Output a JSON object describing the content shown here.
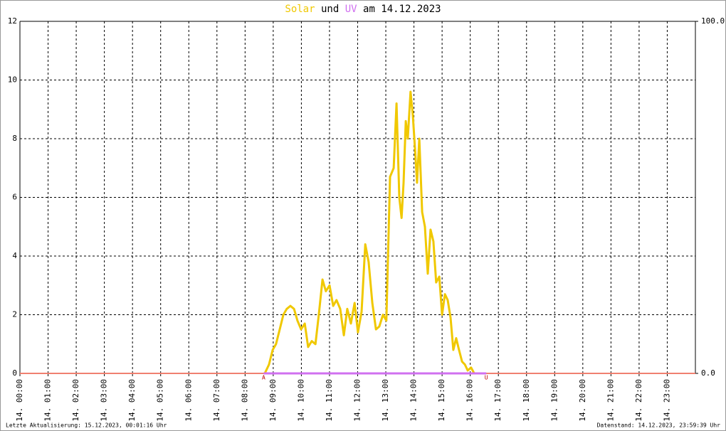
{
  "chart_data": {
    "type": "line",
    "title_connector": "und",
    "title_suffix": "am 14.12.2023",
    "footer_left": "Letzte Aktualisierung: 15.12.2023, 00:01:16 Uhr",
    "footer_right": "Datenstand: 14.12.2023, 23:59:39 Uhr",
    "xlim": [
      0,
      24
    ],
    "xticks": [
      {
        "value": 0,
        "label": "14. 00:00"
      },
      {
        "value": 1,
        "label": "14. 01:00"
      },
      {
        "value": 2,
        "label": "14. 02:00"
      },
      {
        "value": 3,
        "label": "14. 03:00"
      },
      {
        "value": 4,
        "label": "14. 04:00"
      },
      {
        "value": 5,
        "label": "14. 05:00"
      },
      {
        "value": 6,
        "label": "14. 06:00"
      },
      {
        "value": 7,
        "label": "14. 07:00"
      },
      {
        "value": 8,
        "label": "14. 08:00"
      },
      {
        "value": 9,
        "label": "14. 09:00"
      },
      {
        "value": 10,
        "label": "14. 10:00"
      },
      {
        "value": 11,
        "label": "14. 11:00"
      },
      {
        "value": 12,
        "label": "14. 12:00"
      },
      {
        "value": 13,
        "label": "14. 13:00"
      },
      {
        "value": 14,
        "label": "14. 14:00"
      },
      {
        "value": 15,
        "label": "14. 15:00"
      },
      {
        "value": 16,
        "label": "14. 16:00"
      },
      {
        "value": 17,
        "label": "14. 17:00"
      },
      {
        "value": 18,
        "label": "14. 18:00"
      },
      {
        "value": 19,
        "label": "14. 19:00"
      },
      {
        "value": 20,
        "label": "14. 20:00"
      },
      {
        "value": 21,
        "label": "14. 21:00"
      },
      {
        "value": 22,
        "label": "14. 22:00"
      },
      {
        "value": 23,
        "label": "14. 23:00"
      }
    ],
    "ylim": [
      0,
      12
    ],
    "yticks": [
      0,
      2,
      4,
      6,
      8,
      10,
      12
    ],
    "y2lim": [
      0,
      100
    ],
    "y2ticks": [
      {
        "value": 0,
        "label": "0.0"
      },
      {
        "value": 100,
        "label": "100.0"
      }
    ],
    "grid": true,
    "series": [
      {
        "name": "Solar",
        "color": "#f0c800",
        "x": [
          8.7,
          8.85,
          8.98,
          9.1,
          9.23,
          9.36,
          9.48,
          9.61,
          9.74,
          9.86,
          9.99,
          10.12,
          10.24,
          10.37,
          10.5,
          10.62,
          10.75,
          10.87,
          11.0,
          11.13,
          11.25,
          11.38,
          11.51,
          11.63,
          11.76,
          11.89,
          12.01,
          12.14,
          12.27,
          12.39,
          12.52,
          12.65,
          12.77,
          12.9,
          13.02,
          13.15,
          13.28,
          13.38,
          13.48,
          13.56,
          13.63,
          13.71,
          13.78,
          13.88,
          13.96,
          14.04,
          14.11,
          14.19,
          14.29,
          14.39,
          14.49,
          14.59,
          14.69,
          14.79,
          14.9,
          15.0,
          15.1,
          15.2,
          15.3,
          15.4,
          15.5,
          15.6,
          15.71,
          15.81,
          15.91,
          16.03,
          16.14
        ],
        "values": [
          0,
          0.3,
          0.8,
          1.0,
          1.5,
          2.0,
          2.2,
          2.3,
          2.2,
          1.8,
          1.5,
          1.7,
          0.9,
          1.1,
          1.0,
          2.0,
          3.2,
          2.8,
          3.0,
          2.3,
          2.5,
          2.2,
          1.3,
          2.2,
          1.7,
          2.4,
          1.4,
          2.1,
          4.4,
          3.8,
          2.4,
          1.5,
          1.6,
          2.0,
          1.8,
          6.7,
          7.0,
          9.2,
          6.0,
          5.3,
          6.5,
          8.6,
          8.0,
          9.6,
          8.8,
          7.6,
          6.5,
          8.0,
          5.5,
          5.0,
          3.4,
          4.9,
          4.5,
          3.1,
          3.3,
          2.0,
          2.7,
          2.5,
          1.9,
          0.8,
          1.2,
          0.8,
          0.4,
          0.3,
          0.1,
          0.2,
          0
        ]
      },
      {
        "name": "UV",
        "color": "#d070f0",
        "axis": "y2",
        "x": [
          8.66,
          16.57
        ],
        "values": [
          0,
          0
        ]
      }
    ],
    "annotations": [
      {
        "text": "A",
        "x": 8.66
      },
      {
        "text": "U",
        "x": 16.57
      }
    ]
  }
}
